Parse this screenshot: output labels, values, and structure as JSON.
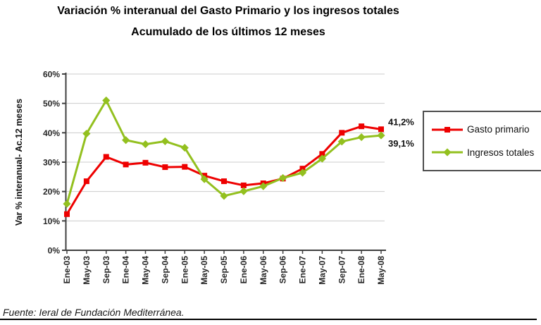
{
  "title": "Variación % interanual del Gasto Primario y los ingresos totales",
  "subtitle": "Acumulado de los últimos 12 meses",
  "footer": {
    "source": "Fuente: Ieral de Fundación Mediterránea."
  },
  "chart_data": {
    "type": "line",
    "title": "Variación % interanual del Gasto Primario y los ingresos totales",
    "subtitle": "Acumulado de los últimos 12 meses",
    "ylabel": "Var % interanual- Ac.12 meses",
    "xlabel": "",
    "ylim": [
      0,
      60
    ],
    "ytick_step": 10,
    "ytick_labels": [
      "0%",
      "10%",
      "20%",
      "30%",
      "40%",
      "50%",
      "60%"
    ],
    "grid": true,
    "legend_position": "right",
    "categories": [
      "Ene-03",
      "May-03",
      "Sep-03",
      "Ene-04",
      "May-04",
      "Sep-04",
      "Ene-05",
      "May-05",
      "Sep-05",
      "Ene-06",
      "May-06",
      "Sep-06",
      "Ene-07",
      "May-07",
      "Sep-07",
      "Ene-08",
      "May-08"
    ],
    "series": [
      {
        "name": "Gasto primario",
        "color": "#ee0000",
        "marker": "square",
        "values": [
          12.3,
          23.5,
          31.8,
          29.2,
          29.8,
          28.3,
          28.4,
          25.4,
          23.5,
          22.1,
          22.8,
          24.4,
          27.8,
          32.8,
          40.0,
          42.2,
          41.2
        ],
        "end_label": "41,2%"
      },
      {
        "name": "Ingresos totales",
        "color": "#93c01f",
        "marker": "diamond",
        "values": [
          15.8,
          39.7,
          51.0,
          37.5,
          36.1,
          37.1,
          34.9,
          24.2,
          18.5,
          20.1,
          21.8,
          24.6,
          26.4,
          31.2,
          37.0,
          38.5,
          39.1
        ],
        "end_label": "39,1%"
      }
    ]
  }
}
